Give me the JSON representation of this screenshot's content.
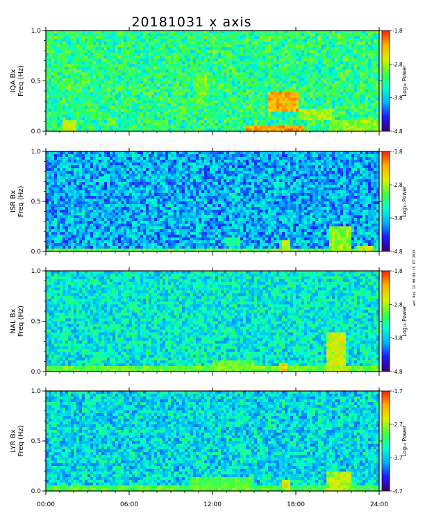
{
  "chart_data": {
    "type": "heatmap",
    "title": "20181031 x axis",
    "side_note": "wet Nov 12 00:00:15 UT 2018",
    "x_ticks": [
      "00:00",
      "06:00",
      "12:00",
      "18:00",
      "24:00"
    ],
    "xlim_hours": [
      0,
      24
    ],
    "y_ticks": [
      "0.0",
      "0.5",
      "1.0"
    ],
    "ylim": [
      0,
      1
    ],
    "colorbar_label": "Log₁₀ Power",
    "colormap": [
      "#3a0070",
      "#1a1aff",
      "#00b0ff",
      "#00ffcc",
      "#40ff40",
      "#d8f000",
      "#ffb000",
      "#ff2000"
    ],
    "panels": [
      {
        "station": "IQA",
        "ylabel_top": "IQA Bx",
        "ylabel_bottom": "Freq (Hz)",
        "clim": [
          -4.8,
          -1.8
        ],
        "cbar_ticks": [
          "-1.8",
          "-2.8",
          "-3.8",
          "-4.8"
        ],
        "base_level": -3.3,
        "features": [
          {
            "t0": 1.2,
            "t1": 2.3,
            "f0": 0.0,
            "f1": 0.1,
            "level": -2.6
          },
          {
            "t0": 10.8,
            "t1": 11.6,
            "f0": 0.28,
            "f1": 0.55,
            "level": -3.0
          },
          {
            "t0": 16.0,
            "t1": 18.1,
            "f0": 0.2,
            "f1": 0.4,
            "level": -2.3
          },
          {
            "t0": 18.2,
            "t1": 20.5,
            "f0": 0.1,
            "f1": 0.22,
            "level": -2.8
          },
          {
            "t0": 20.5,
            "t1": 24.0,
            "f0": 0.0,
            "f1": 0.12,
            "level": -2.9
          },
          {
            "t0": 14.5,
            "t1": 18.5,
            "f0": 0.0,
            "f1": 0.06,
            "level": -2.2
          }
        ]
      },
      {
        "station": "ISR",
        "ylabel_top": "ISR Bx",
        "ylabel_bottom": "Freq (Hz)",
        "clim": [
          -4.8,
          -1.8
        ],
        "cbar_ticks": [
          "-1.8",
          "-2.8",
          "-3.8",
          "-4.8"
        ],
        "base_level": -3.9,
        "features": [
          {
            "t0": 0.0,
            "t1": 24.0,
            "f0": 0.0,
            "f1": 0.04,
            "level": -3.0
          },
          {
            "t0": 13.0,
            "t1": 14.0,
            "f0": 0.05,
            "f1": 0.15,
            "level": -3.3
          },
          {
            "t0": 17.0,
            "t1": 17.6,
            "f0": 0.0,
            "f1": 0.1,
            "level": -2.7
          },
          {
            "t0": 20.5,
            "t1": 22.0,
            "f0": 0.0,
            "f1": 0.25,
            "level": -2.9
          },
          {
            "t0": 22.5,
            "t1": 23.5,
            "f0": 0.0,
            "f1": 0.06,
            "level": -2.8
          }
        ]
      },
      {
        "station": "NAL",
        "ylabel_top": "NAL Bx",
        "ylabel_bottom": "Freq (Hz)",
        "clim": [
          -4.8,
          -1.8
        ],
        "cbar_ticks": [
          "-1.8",
          "-2.8",
          "-3.8",
          "-4.8"
        ],
        "base_level": -3.6,
        "features": [
          {
            "t0": 0.0,
            "t1": 24.0,
            "f0": 0.0,
            "f1": 0.05,
            "level": -3.0
          },
          {
            "t0": 12.0,
            "t1": 15.0,
            "f0": 0.0,
            "f1": 0.1,
            "level": -3.0
          },
          {
            "t0": 20.3,
            "t1": 21.5,
            "f0": 0.0,
            "f1": 0.4,
            "level": -2.7
          },
          {
            "t0": 16.8,
            "t1": 17.4,
            "f0": 0.0,
            "f1": 0.08,
            "level": -2.4
          }
        ]
      },
      {
        "station": "LYR",
        "ylabel_top": "LYR Bx",
        "ylabel_bottom": "Freq (Hz)",
        "clim": [
          -4.7,
          -1.7
        ],
        "cbar_ticks": [
          "-1.7",
          "-2.7",
          "-3.7",
          "-4.7"
        ],
        "base_level": -3.6,
        "features": [
          {
            "t0": 0.0,
            "t1": 24.0,
            "f0": 0.0,
            "f1": 0.05,
            "level": -3.0
          },
          {
            "t0": 10.5,
            "t1": 15.0,
            "f0": 0.0,
            "f1": 0.15,
            "level": -3.0
          },
          {
            "t0": 17.0,
            "t1": 17.6,
            "f0": 0.0,
            "f1": 0.1,
            "level": -2.6
          },
          {
            "t0": 20.3,
            "t1": 22.0,
            "f0": 0.0,
            "f1": 0.2,
            "level": -2.7
          }
        ]
      }
    ]
  }
}
